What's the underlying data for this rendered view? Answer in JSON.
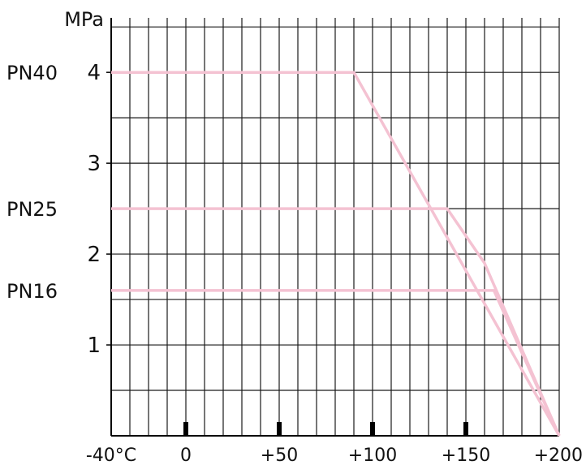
{
  "chart_data": {
    "type": "line",
    "title": "",
    "xlabel": "",
    "ylabel": "MPa",
    "x_range": [
      -40,
      200
    ],
    "y_range": [
      0,
      4.6
    ],
    "x_tick_labels": [
      {
        "value": -40,
        "label": "-40°C"
      },
      {
        "value": 0,
        "label": "0"
      },
      {
        "value": 50,
        "label": "+50"
      },
      {
        "value": 100,
        "label": "+100"
      },
      {
        "value": 150,
        "label": "+150"
      },
      {
        "value": 200,
        "label": "+200"
      }
    ],
    "y_tick_labels": [
      {
        "value": 4,
        "label": "4"
      },
      {
        "value": 3,
        "label": "3"
      },
      {
        "value": 2,
        "label": "2"
      },
      {
        "value": 1,
        "label": "1"
      }
    ],
    "grid": true,
    "x_minor_step": 10,
    "y_minor_step": 0.5,
    "x_markers": [
      0,
      50,
      100,
      150
    ],
    "series": [
      {
        "name": "PN40",
        "color": "#f4c2d2",
        "x": [
          -40,
          90,
          200
        ],
        "y": [
          4,
          4,
          0
        ]
      },
      {
        "name": "PN25",
        "color": "#f4c2d2",
        "x": [
          -40,
          140,
          160,
          200
        ],
        "y": [
          2.5,
          2.5,
          1.9,
          0
        ]
      },
      {
        "name": "PN16",
        "color": "#f4c2d2",
        "x": [
          -40,
          165,
          200
        ],
        "y": [
          1.6,
          1.6,
          0
        ]
      }
    ]
  }
}
